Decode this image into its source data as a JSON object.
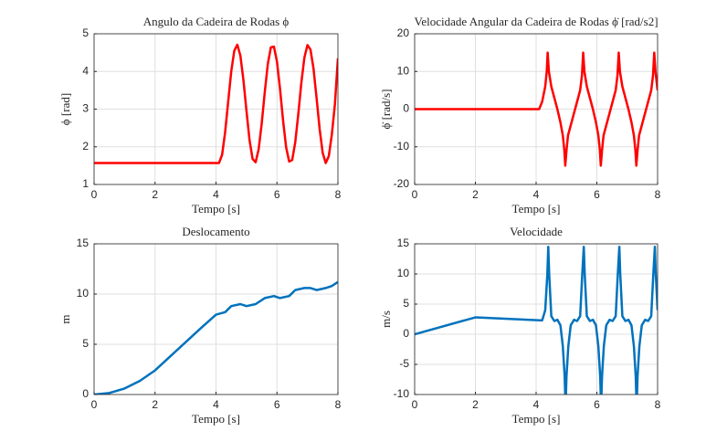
{
  "chart_data": [
    {
      "type": "line",
      "title": "Angulo da Cadeira de Rodas ϕ",
      "xlabel": "Tempo [s]",
      "ylabel": "ϕ [rad]",
      "color": "#ff0000",
      "grid": true,
      "xlim": [
        0,
        8
      ],
      "xticks": [
        0,
        2,
        4,
        6,
        8
      ],
      "ylim": [
        1,
        5
      ],
      "yticks": [
        1,
        2,
        3,
        4,
        5
      ],
      "x": [
        0,
        4.1,
        4.2,
        4.3,
        4.4,
        4.5,
        4.6,
        4.7,
        4.8,
        4.9,
        5.0,
        5.1,
        5.2,
        5.3,
        5.4,
        5.5,
        5.6,
        5.7,
        5.8,
        5.9,
        6.0,
        6.1,
        6.2,
        6.3,
        6.4,
        6.5,
        6.6,
        6.7,
        6.8,
        6.9,
        7.0,
        7.1,
        7.2,
        7.3,
        7.4,
        7.5,
        7.6,
        7.7,
        7.8,
        7.9,
        8.0
      ],
      "values": [
        1.57,
        1.57,
        1.79,
        2.39,
        3.2,
        4.0,
        4.55,
        4.71,
        4.42,
        3.77,
        2.95,
        2.18,
        1.68,
        1.59,
        1.94,
        2.62,
        3.45,
        4.2,
        4.64,
        4.66,
        4.26,
        3.54,
        2.7,
        1.99,
        1.61,
        1.65,
        2.12,
        2.87,
        3.7,
        4.37,
        4.7,
        4.58,
        4.07,
        3.29,
        2.47,
        1.84,
        1.57,
        1.75,
        2.32,
        3.12,
        4.35
      ]
    },
    {
      "type": "line",
      "title": "Velocidade Angular da Cadeira de Rodas ϕ̇ [rad/s2]",
      "xlabel": "Tempo [s]",
      "ylabel": "ϕ̇ [rad/s]",
      "color": "#ff0000",
      "grid": true,
      "xlim": [
        0,
        8
      ],
      "xticks": [
        0,
        2,
        4,
        6,
        8
      ],
      "ylim": [
        -20,
        20
      ],
      "yticks": [
        -20,
        -10,
        0,
        10,
        20
      ],
      "x": [
        0,
        4.1,
        4.2,
        4.3,
        4.35,
        4.38,
        4.42,
        4.5,
        4.6,
        4.7,
        4.8,
        4.88,
        4.93,
        4.96,
        5.0,
        5.05,
        5.15,
        5.25,
        5.35,
        5.45,
        5.51,
        5.55,
        5.59,
        5.67,
        5.77,
        5.87,
        5.97,
        6.05,
        6.1,
        6.13,
        6.17,
        6.22,
        6.32,
        6.42,
        6.52,
        6.62,
        6.68,
        6.72,
        6.76,
        6.84,
        6.94,
        7.04,
        7.14,
        7.22,
        7.27,
        7.3,
        7.34,
        7.39,
        7.49,
        7.59,
        7.69,
        7.79,
        7.85,
        7.89,
        7.93,
        8.0
      ],
      "values": [
        0,
        0,
        2,
        6,
        10,
        15,
        10,
        6,
        3,
        0,
        -3.5,
        -7,
        -11,
        -15,
        -11,
        -7,
        -4,
        -1,
        2,
        5,
        9,
        15,
        10,
        6,
        3,
        0,
        -3.5,
        -7,
        -11,
        -15,
        -11,
        -7,
        -4,
        -1,
        2,
        5,
        9,
        15,
        10,
        6,
        3,
        0,
        -3.5,
        -7,
        -11,
        -15,
        -11,
        -7,
        -4,
        -1,
        2,
        5,
        9,
        15,
        10,
        5
      ]
    },
    {
      "type": "line",
      "title": "Deslocamento",
      "xlabel": "Tempo [s]",
      "ylabel": "m",
      "color": "#0072bd",
      "grid": true,
      "xlim": [
        0,
        8
      ],
      "xticks": [
        0,
        2,
        4,
        6,
        8
      ],
      "ylim": [
        0,
        15
      ],
      "yticks": [
        0,
        5,
        10,
        15
      ],
      "x": [
        0,
        0.5,
        1,
        1.5,
        2,
        2.5,
        3,
        3.5,
        4,
        4.3,
        4.5,
        4.8,
        5.0,
        5.3,
        5.6,
        5.9,
        6.1,
        6.4,
        6.6,
        6.9,
        7.1,
        7.3,
        7.6,
        7.8,
        8.0
      ],
      "values": [
        0,
        0.15,
        0.6,
        1.35,
        2.4,
        3.8,
        5.2,
        6.6,
        7.95,
        8.2,
        8.8,
        9.0,
        8.8,
        9.0,
        9.6,
        9.8,
        9.6,
        9.8,
        10.4,
        10.6,
        10.6,
        10.4,
        10.6,
        10.8,
        11.2
      ]
    },
    {
      "type": "line",
      "title": "Velocidade",
      "xlabel": "Tempo [s]",
      "ylabel": "m/s",
      "color": "#0072bd",
      "grid": true,
      "xlim": [
        0,
        8
      ],
      "xticks": [
        0,
        2,
        4,
        6,
        8
      ],
      "ylim": [
        -10,
        15
      ],
      "yticks": [
        -10,
        -5,
        0,
        5,
        10,
        15
      ],
      "x": [
        0,
        2,
        4.2,
        4.3,
        4.37,
        4.4,
        4.43,
        4.5,
        4.6,
        4.7,
        4.8,
        4.88,
        4.94,
        4.97,
        5.0,
        5.06,
        5.14,
        5.25,
        5.35,
        5.45,
        5.52,
        5.57,
        5.6,
        5.67,
        5.77,
        5.87,
        5.97,
        6.05,
        6.11,
        6.14,
        6.17,
        6.23,
        6.31,
        6.42,
        6.52,
        6.62,
        6.69,
        6.74,
        6.77,
        6.84,
        6.94,
        7.04,
        7.14,
        7.22,
        7.28,
        7.31,
        7.34,
        7.4,
        7.48,
        7.59,
        7.69,
        7.79,
        7.86,
        7.91,
        7.94,
        8.0
      ],
      "values": [
        0,
        2.8,
        2.3,
        4,
        10,
        14.5,
        10,
        3,
        2.2,
        2.4,
        1.5,
        -2,
        -7,
        -12,
        -7,
        -2,
        1.5,
        2.4,
        2.2,
        3,
        10,
        14.5,
        10,
        3,
        2.2,
        2.4,
        1.5,
        -2,
        -7,
        -12,
        -7,
        -2,
        1.5,
        2.4,
        2.2,
        3,
        10,
        14.5,
        10,
        3,
        2.2,
        2.4,
        1.5,
        -2,
        -7,
        -12,
        -7,
        -2,
        1.5,
        2.4,
        2.2,
        3,
        10,
        14.5,
        10,
        4
      ]
    }
  ]
}
